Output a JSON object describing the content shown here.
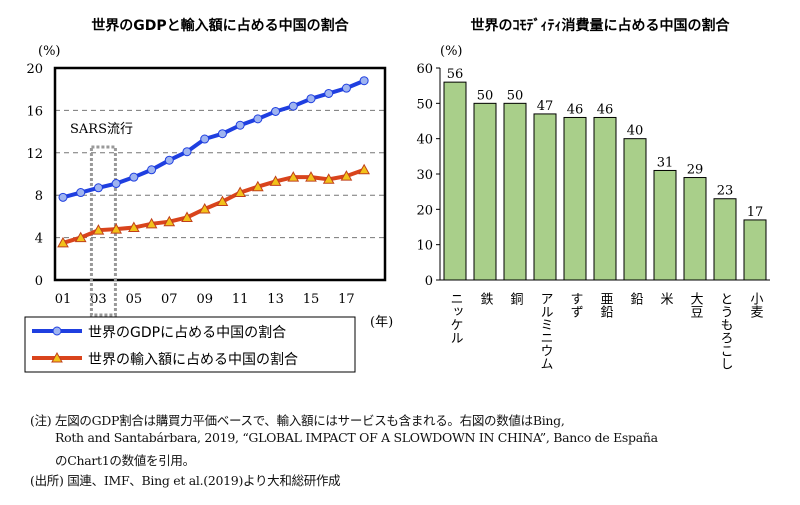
{
  "chart_data": [
    {
      "type": "line",
      "title": "世界のGDPと輸入額に占める中国の割合",
      "ylabel": "(%)",
      "xlabel": "(年)",
      "ylim": [
        0,
        20
      ],
      "yticks": [
        "0",
        "4",
        "8",
        "12",
        "16",
        "20"
      ],
      "x": [
        "01",
        "02",
        "03",
        "04",
        "05",
        "06",
        "07",
        "08",
        "09",
        "10",
        "11",
        "12",
        "13",
        "14",
        "15",
        "16",
        "17",
        "18"
      ],
      "xtick_labels": [
        "01",
        "03",
        "05",
        "07",
        "09",
        "11",
        "13",
        "15",
        "17"
      ],
      "annotation": "SARS流行",
      "grid": "horizontal-dashed",
      "series": [
        {
          "name": "世界のGDPに占める中国の割合",
          "color": "#1f3fe0",
          "values": [
            7.8,
            8.25,
            8.7,
            9.1,
            9.7,
            10.4,
            11.3,
            12.1,
            13.3,
            13.8,
            14.6,
            15.2,
            15.9,
            16.4,
            17.1,
            17.6,
            18.1,
            18.8
          ]
        },
        {
          "name": "世界の輸入額に占める中国の割合",
          "color": "#d9441c",
          "values": [
            3.5,
            4.0,
            4.7,
            4.8,
            4.95,
            5.3,
            5.5,
            5.9,
            6.7,
            7.4,
            8.25,
            8.8,
            9.3,
            9.7,
            9.7,
            9.5,
            9.8,
            10.4
          ]
        }
      ]
    },
    {
      "type": "bar",
      "title": "世界のｺﾓﾃﾞｨﾃｨ消費量に占める中国の割合",
      "ylabel": "(%)",
      "ylim": [
        0,
        60
      ],
      "yticks": [
        "0",
        "10",
        "20",
        "30",
        "40",
        "50",
        "60"
      ],
      "categories": [
        "ニッケル",
        "鉄",
        "銅",
        "アルミニウム",
        "すず",
        "亜鉛",
        "鉛",
        "米",
        "大豆",
        "とうもろこし",
        "小麦"
      ],
      "values": [
        56,
        50,
        50,
        47,
        46,
        46,
        40,
        31,
        29,
        23,
        17
      ],
      "color": "#a9cf8a"
    }
  ],
  "notes": {
    "line1": "(注) 左図のGDP割合は購買力平価ベースで、輸入額にはサービスも含まれる。右図の数値はBing,",
    "line2": "Roth and Santabárbara, 2019, “GLOBAL IMPACT OF A SLOWDOWN IN CHINA”, Banco de España",
    "line3": "のChart1の数値を引用。",
    "source": "(出所) 国連、IMF、Bing et al.(2019)より大和総研作成"
  }
}
